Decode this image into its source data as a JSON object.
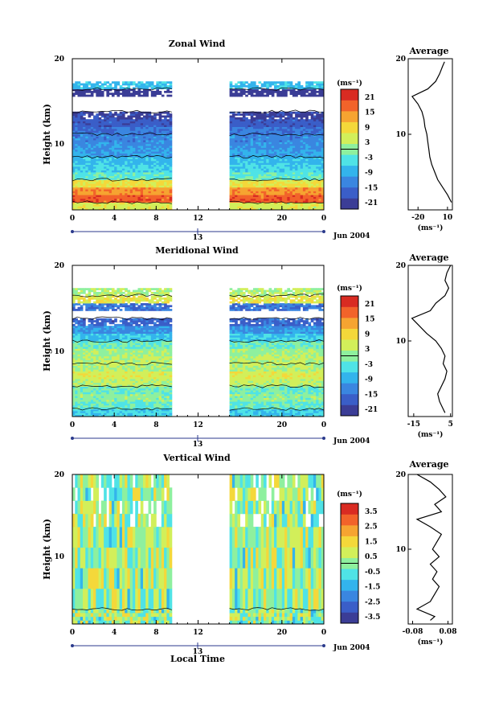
{
  "chart_data": [
    {
      "type": "heatmap",
      "title": "Zonal Wind",
      "ylabel": "Height (km)",
      "xlabel": "",
      "ylim": [
        0,
        20
      ],
      "xlim": [
        0,
        24
      ],
      "x_ticks": [
        "0",
        "4",
        "8",
        "12",
        "20",
        "0"
      ],
      "x_tick_values": [
        0,
        4,
        8,
        12,
        20,
        24
      ],
      "y_ticks": [
        "10",
        "20"
      ],
      "y_tick_values": [
        10,
        20
      ],
      "date_marker": "13",
      "date_label": "Jun 2004",
      "data_gap_hours": [
        9.5,
        15
      ],
      "colorbar": {
        "unit_label": "(ms⁻¹)",
        "ticks": [
          "21",
          "15",
          "9",
          "3",
          "-3",
          "-9",
          "-15",
          "-21"
        ],
        "range": [
          -24,
          24
        ]
      },
      "profile": {
        "title": "Average",
        "xlabel": "(ms⁻¹)",
        "x_ticks": [
          "-20",
          "10"
        ],
        "x_tick_values": [
          -20,
          10
        ],
        "xlim": [
          -30,
          15
        ],
        "y_ticks": [
          "10",
          "20"
        ],
        "heights": [
          1,
          2,
          3,
          4,
          5,
          6,
          7,
          8,
          9,
          10,
          11,
          12,
          13,
          14,
          15,
          16,
          17,
          18,
          19,
          19.6
        ],
        "values": [
          14,
          10,
          5,
          0,
          -3,
          -6,
          -8,
          -9,
          -10,
          -11,
          -13,
          -14,
          -16,
          -20,
          -26,
          -10,
          -2,
          2,
          5,
          7
        ]
      },
      "levels": [
        {
          "h0": 0,
          "h1": 1,
          "v": 5
        },
        {
          "h0": 1,
          "h1": 2,
          "v": 18
        },
        {
          "h0": 2,
          "h1": 3,
          "v": 14
        },
        {
          "h0": 3,
          "h1": 4,
          "v": 7
        },
        {
          "h0": 4,
          "h1": 5,
          "v": -3
        },
        {
          "h0": 5,
          "h1": 6,
          "v": -6
        },
        {
          "h0": 6,
          "h1": 7,
          "v": -8
        },
        {
          "h0": 7,
          "h1": 8,
          "v": -10
        },
        {
          "h0": 8,
          "h1": 9,
          "v": -12
        },
        {
          "h0": 9,
          "h1": 10,
          "v": -13
        },
        {
          "h0": 10,
          "h1": 11,
          "v": -15
        },
        {
          "h0": 11,
          "h1": 12,
          "v": -18
        },
        {
          "h0": 12,
          "h1": 13,
          "v": -21
        },
        {
          "h0": 13,
          "h1": 14,
          "v": null
        },
        {
          "h0": 14,
          "h1": 15,
          "v": null
        },
        {
          "h0": 15,
          "h1": 16,
          "v": -24
        },
        {
          "h0": 16,
          "h1": 17,
          "v": -8
        },
        {
          "h0": 17,
          "h1": 20,
          "v": null
        }
      ],
      "contours": [
        3.2
      ]
    },
    {
      "type": "heatmap",
      "title": "Meridional Wind",
      "ylabel": "Height (km)",
      "xlabel": "",
      "ylim": [
        0,
        20
      ],
      "xlim": [
        0,
        24
      ],
      "x_ticks": [
        "0",
        "4",
        "8",
        "12",
        "20",
        "0"
      ],
      "x_tick_values": [
        0,
        4,
        8,
        12,
        20,
        24
      ],
      "y_ticks": [
        "10",
        "20"
      ],
      "y_tick_values": [
        10,
        20
      ],
      "date_marker": "13",
      "date_label": "Jun 2004",
      "data_gap_hours": [
        9.5,
        15
      ],
      "colorbar": {
        "unit_label": "(ms⁻¹)",
        "ticks": [
          "21",
          "15",
          "9",
          "3",
          "-3",
          "-9",
          "-15",
          "-21"
        ],
        "range": [
          -24,
          24
        ]
      },
      "profile": {
        "title": "Average",
        "xlabel": "(ms⁻¹)",
        "x_ticks": [
          "-15",
          "5"
        ],
        "x_tick_values": [
          -15,
          5
        ],
        "xlim": [
          -18,
          6
        ],
        "y_ticks": [
          "10",
          "20"
        ],
        "heights": [
          0.5,
          1,
          2,
          3,
          4,
          5,
          6,
          7,
          8,
          9,
          10,
          11,
          12,
          13,
          14,
          15,
          16,
          17,
          18,
          19,
          20
        ],
        "values": [
          2,
          1,
          -1,
          -2,
          0,
          2,
          3,
          1,
          2,
          0,
          -3,
          -8,
          -12,
          -16,
          -6,
          -3,
          2,
          4,
          2,
          3,
          5
        ]
      },
      "levels": [
        {
          "h0": 0,
          "h1": 1,
          "v": -6
        },
        {
          "h0": 1,
          "h1": 2,
          "v": -3
        },
        {
          "h0": 2,
          "h1": 3,
          "v": 0
        },
        {
          "h0": 3,
          "h1": 4,
          "v": -2
        },
        {
          "h0": 4,
          "h1": 5,
          "v": 3
        },
        {
          "h0": 5,
          "h1": 6,
          "v": 5
        },
        {
          "h0": 6,
          "h1": 7,
          "v": 2
        },
        {
          "h0": 7,
          "h1": 8,
          "v": 3
        },
        {
          "h0": 8,
          "h1": 9,
          "v": 1
        },
        {
          "h0": 9,
          "h1": 10,
          "v": -2
        },
        {
          "h0": 10,
          "h1": 11,
          "v": -7
        },
        {
          "h0": 11,
          "h1": 12,
          "v": -12
        },
        {
          "h0": 12,
          "h1": 13,
          "v": -17
        },
        {
          "h0": 13,
          "h1": 14,
          "v": null
        },
        {
          "h0": 14,
          "h1": 15,
          "v": -15
        },
        {
          "h0": 15,
          "h1": 16,
          "v": 6
        },
        {
          "h0": 16,
          "h1": 17,
          "v": 2
        },
        {
          "h0": 17,
          "h1": 20,
          "v": null
        }
      ],
      "contours": [
        3.2
      ]
    },
    {
      "type": "heatmap",
      "title": "Vertical Wind",
      "ylabel": "Height (km)",
      "xlabel": "Local Time",
      "ylim": [
        0,
        20
      ],
      "xlim": [
        0,
        24
      ],
      "x_ticks": [
        "0",
        "4",
        "8",
        "12",
        "20",
        "0"
      ],
      "x_tick_values": [
        0,
        4,
        8,
        12,
        20,
        24
      ],
      "y_ticks": [
        "10",
        "20"
      ],
      "y_tick_values": [
        10,
        20
      ],
      "date_marker": "13",
      "date_label": "Jun 2004",
      "data_gap_hours": [
        9.5,
        15
      ],
      "colorbar": {
        "unit_label": "(ms⁻¹)",
        "ticks": [
          "3.5",
          "2.5",
          "1.5",
          "0.5",
          "-0.5",
          "-1.5",
          "-2.5",
          "-3.5"
        ],
        "range": [
          -4,
          4
        ]
      },
      "profile": {
        "title": "Average",
        "xlabel": "(ms⁻¹)",
        "x_ticks": [
          "-0.08",
          "0.08"
        ],
        "x_tick_values": [
          -0.08,
          0.08
        ],
        "xlim": [
          -0.1,
          0.1
        ],
        "y_ticks": [
          "10",
          "20"
        ],
        "heights": [
          0.5,
          1,
          2,
          3,
          4,
          5,
          6,
          7,
          8,
          9,
          10,
          11,
          12,
          13,
          14,
          15,
          16,
          17,
          18,
          19,
          20
        ],
        "values": [
          0.0,
          0.02,
          -0.06,
          0.0,
          0.02,
          0.04,
          0.01,
          0.03,
          0.0,
          0.04,
          0.01,
          0.03,
          0.05,
          0.0,
          -0.06,
          0.05,
          0.02,
          0.07,
          0.04,
          0.0,
          -0.06
        ]
      },
      "levels": [
        {
          "h0": 0,
          "h1": 2,
          "v": 0.1
        },
        {
          "h0": 2,
          "h1": 13,
          "v": 0.2
        },
        {
          "h0": 13,
          "h1": 20,
          "v": 0.15
        }
      ],
      "contours": [
        0.5
      ]
    }
  ]
}
